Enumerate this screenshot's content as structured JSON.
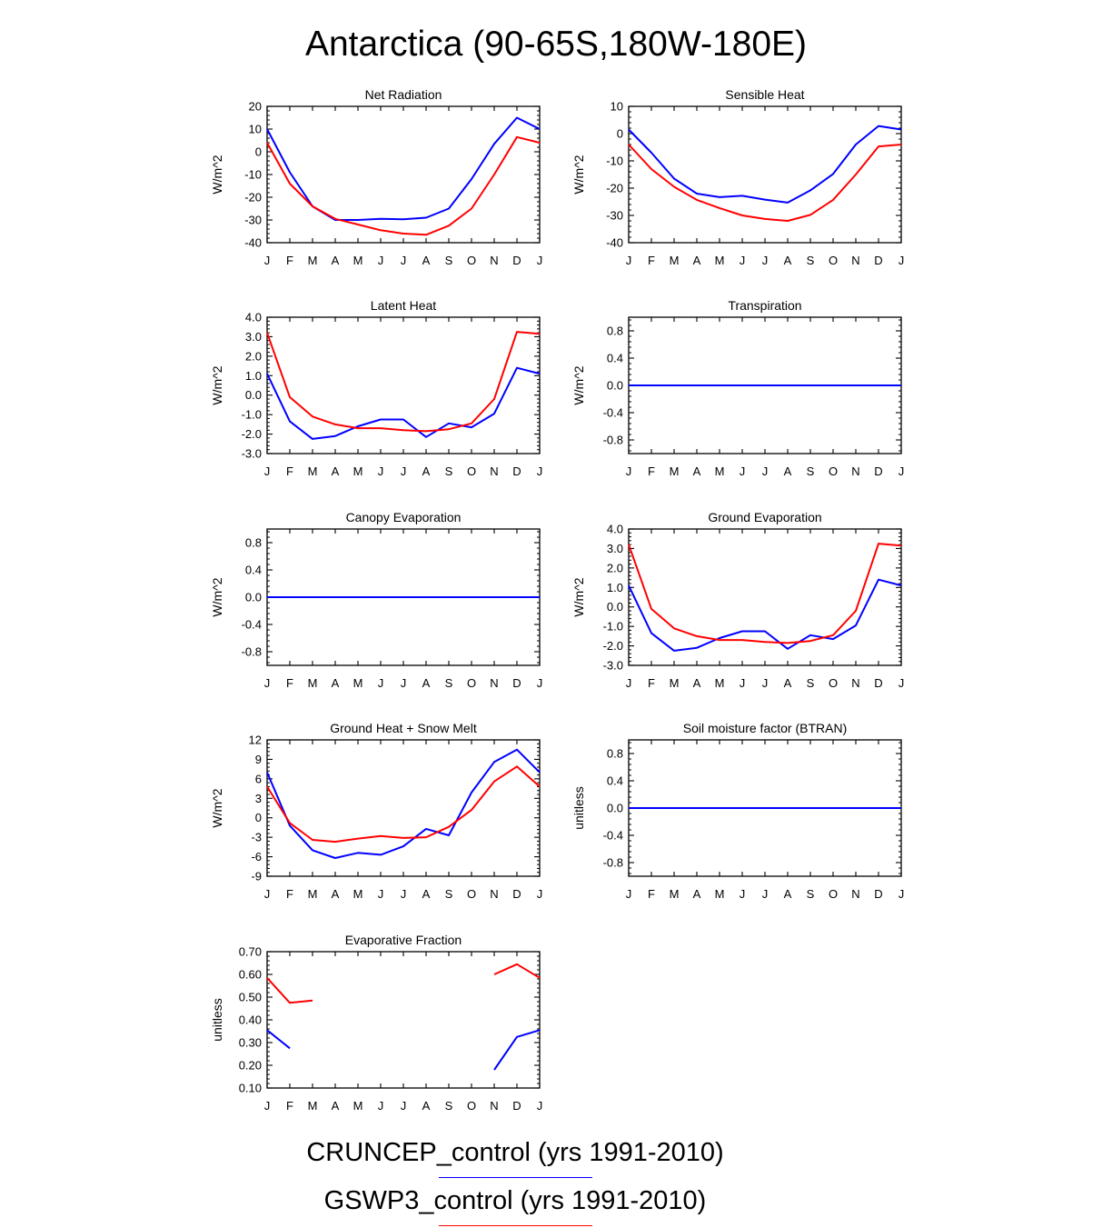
{
  "title": "Antarctica (90-65S,180W-180E)",
  "colors": {
    "CRUNCEP": "#0000ff",
    "GSWP3": "#ff0000"
  },
  "legend": [
    {
      "label": "CRUNCEP_control (yrs 1991-2010)",
      "color": "#0000ff"
    },
    {
      "label": "GSWP3_control (yrs 1991-2010)",
      "color": "#ff0000"
    }
  ],
  "chart_data": [
    {
      "type": "line",
      "title": "Net Radiation",
      "ylabel": "W/m^2",
      "categories": [
        "J",
        "F",
        "M",
        "A",
        "M",
        "J",
        "J",
        "A",
        "S",
        "O",
        "N",
        "D",
        "J"
      ],
      "ylim": [
        -40,
        20
      ],
      "yticks": [
        "20",
        "10",
        "0",
        "-10",
        "-20",
        "-30",
        "-40"
      ],
      "ytick_values": [
        20,
        10,
        0,
        -10,
        -20,
        -30,
        -40
      ],
      "series": [
        {
          "name": "CRUNCEP_control",
          "color": "#0000ff",
          "values": [
            10,
            -9,
            -24,
            -30,
            -30,
            -29.5,
            -29.7,
            -29,
            -25,
            -12,
            3.5,
            15,
            10
          ]
        },
        {
          "name": "GSWP3_control",
          "color": "#ff0000",
          "values": [
            4,
            -14,
            -24,
            -29.5,
            -32,
            -34.5,
            -36,
            -36.5,
            -32.5,
            -25,
            -10,
            6.5,
            4
          ]
        }
      ]
    },
    {
      "type": "line",
      "title": "Sensible Heat",
      "ylabel": "W/m^2",
      "categories": [
        "J",
        "F",
        "M",
        "A",
        "M",
        "J",
        "J",
        "A",
        "S",
        "O",
        "N",
        "D",
        "J"
      ],
      "ylim": [
        -40,
        10
      ],
      "yticks": [
        "10",
        "0",
        "-10",
        "-20",
        "-30",
        "-40"
      ],
      "ytick_values": [
        10,
        0,
        -10,
        -20,
        -30,
        -40
      ],
      "series": [
        {
          "name": "CRUNCEP_control",
          "color": "#0000ff",
          "values": [
            1.5,
            -7,
            -16.5,
            -22,
            -23.3,
            -22.8,
            -24.2,
            -25.3,
            -20.8,
            -14.8,
            -4,
            2.8,
            1.5
          ]
        },
        {
          "name": "GSWP3_control",
          "color": "#ff0000",
          "values": [
            -4,
            -13,
            -19.5,
            -24.3,
            -27.3,
            -30,
            -31.3,
            -32,
            -29.8,
            -24.3,
            -15,
            -4.7,
            -4
          ]
        }
      ]
    },
    {
      "type": "line",
      "title": "Latent Heat",
      "ylabel": "W/m^2",
      "categories": [
        "J",
        "F",
        "M",
        "A",
        "M",
        "J",
        "J",
        "A",
        "S",
        "O",
        "N",
        "D",
        "J"
      ],
      "ylim": [
        -3.0,
        4.0
      ],
      "yticks": [
        "4.0",
        "3.0",
        "2.0",
        "1.0",
        "0.0",
        "-1.0",
        "-2.0",
        "-3.0"
      ],
      "ytick_values": [
        4,
        3,
        2,
        1,
        0,
        -1,
        -2,
        -3
      ],
      "series": [
        {
          "name": "CRUNCEP_control",
          "color": "#0000ff",
          "values": [
            1.1,
            -1.35,
            -2.25,
            -2.1,
            -1.6,
            -1.25,
            -1.25,
            -2.15,
            -1.45,
            -1.65,
            -0.95,
            1.4,
            1.1
          ]
        },
        {
          "name": "GSWP3_control",
          "color": "#ff0000",
          "values": [
            3.2,
            -0.1,
            -1.1,
            -1.5,
            -1.7,
            -1.7,
            -1.8,
            -1.85,
            -1.75,
            -1.45,
            -0.2,
            3.25,
            3.15
          ]
        }
      ]
    },
    {
      "type": "line",
      "title": "Transpiration",
      "ylabel": "W/m^2",
      "categories": [
        "J",
        "F",
        "M",
        "A",
        "M",
        "J",
        "J",
        "A",
        "S",
        "O",
        "N",
        "D",
        "J"
      ],
      "ylim": [
        -1.0,
        1.0
      ],
      "yticks": [
        "0.8",
        "0.4",
        "0.0",
        "-0.4",
        "-0.8"
      ],
      "ytick_values": [
        0.8,
        0.4,
        0,
        -0.4,
        -0.8
      ],
      "series": [
        {
          "name": "GSWP3_control",
          "color": "#ff0000",
          "values": [
            0,
            0,
            0,
            0,
            0,
            0,
            0,
            0,
            0,
            0,
            0,
            0,
            0
          ]
        },
        {
          "name": "CRUNCEP_control",
          "color": "#0000ff",
          "values": [
            0,
            0,
            0,
            0,
            0,
            0,
            0,
            0,
            0,
            0,
            0,
            0,
            0
          ]
        }
      ]
    },
    {
      "type": "line",
      "title": "Canopy Evaporation",
      "ylabel": "W/m^2",
      "categories": [
        "J",
        "F",
        "M",
        "A",
        "M",
        "J",
        "J",
        "A",
        "S",
        "O",
        "N",
        "D",
        "J"
      ],
      "ylim": [
        -1.0,
        1.0
      ],
      "yticks": [
        "0.8",
        "0.4",
        "0.0",
        "-0.4",
        "-0.8"
      ],
      "ytick_values": [
        0.8,
        0.4,
        0,
        -0.4,
        -0.8
      ],
      "series": [
        {
          "name": "GSWP3_control",
          "color": "#ff0000",
          "values": [
            0,
            0,
            0,
            0,
            0,
            0,
            0,
            0,
            0,
            0,
            0,
            0,
            0
          ]
        },
        {
          "name": "CRUNCEP_control",
          "color": "#0000ff",
          "values": [
            0,
            0,
            0,
            0,
            0,
            0,
            0,
            0,
            0,
            0,
            0,
            0,
            0
          ]
        }
      ]
    },
    {
      "type": "line",
      "title": "Ground Evaporation",
      "ylabel": "W/m^2",
      "categories": [
        "J",
        "F",
        "M",
        "A",
        "M",
        "J",
        "J",
        "A",
        "S",
        "O",
        "N",
        "D",
        "J"
      ],
      "ylim": [
        -3.0,
        4.0
      ],
      "yticks": [
        "4.0",
        "3.0",
        "2.0",
        "1.0",
        "0.0",
        "-1.0",
        "-2.0",
        "-3.0"
      ],
      "ytick_values": [
        4,
        3,
        2,
        1,
        0,
        -1,
        -2,
        -3
      ],
      "series": [
        {
          "name": "CRUNCEP_control",
          "color": "#0000ff",
          "values": [
            1.1,
            -1.35,
            -2.25,
            -2.1,
            -1.6,
            -1.25,
            -1.25,
            -2.15,
            -1.45,
            -1.65,
            -0.95,
            1.4,
            1.1
          ]
        },
        {
          "name": "GSWP3_control",
          "color": "#ff0000",
          "values": [
            3.2,
            -0.1,
            -1.1,
            -1.5,
            -1.7,
            -1.7,
            -1.8,
            -1.85,
            -1.75,
            -1.45,
            -0.2,
            3.25,
            3.15
          ]
        }
      ]
    },
    {
      "type": "line",
      "title": "Ground Heat + Snow Melt",
      "ylabel": "W/m^2",
      "categories": [
        "J",
        "F",
        "M",
        "A",
        "M",
        "J",
        "J",
        "A",
        "S",
        "O",
        "N",
        "D",
        "J"
      ],
      "ylim": [
        -9,
        12
      ],
      "yticks": [
        "12",
        "9",
        "6",
        "3",
        "0",
        "-3",
        "-6",
        "-9"
      ],
      "ytick_values": [
        12,
        9,
        6,
        3,
        0,
        -3,
        -6,
        -9
      ],
      "series": [
        {
          "name": "CRUNCEP_control",
          "color": "#0000ff",
          "values": [
            7,
            -1.2,
            -5,
            -6.2,
            -5.4,
            -5.7,
            -4.4,
            -1.7,
            -2.7,
            3.9,
            8.6,
            10.5,
            7
          ]
        },
        {
          "name": "GSWP3_control",
          "color": "#ff0000",
          "values": [
            4.8,
            -0.8,
            -3.4,
            -3.7,
            -3.2,
            -2.8,
            -3.1,
            -3,
            -1.4,
            1.2,
            5.6,
            7.9,
            4.8
          ]
        }
      ]
    },
    {
      "type": "line",
      "title": "Soil moisture factor (BTRAN)",
      "ylabel": "unitless",
      "categories": [
        "J",
        "F",
        "M",
        "A",
        "M",
        "J",
        "J",
        "A",
        "S",
        "O",
        "N",
        "D",
        "J"
      ],
      "ylim": [
        -1.0,
        1.0
      ],
      "yticks": [
        "0.8",
        "0.4",
        "0.0",
        "-0.4",
        "-0.8"
      ],
      "ytick_values": [
        0.8,
        0.4,
        0,
        -0.4,
        -0.8
      ],
      "series": [
        {
          "name": "GSWP3_control",
          "color": "#ff0000",
          "values": [
            0,
            0,
            0,
            0,
            0,
            0,
            0,
            0,
            0,
            0,
            0,
            0,
            0
          ]
        },
        {
          "name": "CRUNCEP_control",
          "color": "#0000ff",
          "values": [
            0,
            0,
            0,
            0,
            0,
            0,
            0,
            0,
            0,
            0,
            0,
            0,
            0
          ]
        }
      ]
    },
    {
      "type": "line",
      "title": "Evaporative Fraction",
      "ylabel": "unitless",
      "categories": [
        "J",
        "F",
        "M",
        "A",
        "M",
        "J",
        "J",
        "A",
        "S",
        "O",
        "N",
        "D",
        "J"
      ],
      "ylim": [
        0.1,
        0.7
      ],
      "yticks": [
        "0.70",
        "0.60",
        "0.50",
        "0.40",
        "0.30",
        "0.20",
        "0.10"
      ],
      "ytick_values": [
        0.7,
        0.6,
        0.5,
        0.4,
        0.3,
        0.2,
        0.1
      ],
      "series": [
        {
          "name": "CRUNCEP_control",
          "color": "#0000ff",
          "values": [
            0.355,
            0.275,
            null,
            null,
            null,
            null,
            null,
            null,
            null,
            null,
            0.18,
            0.325,
            0.355
          ]
        },
        {
          "name": "GSWP3_control",
          "color": "#ff0000",
          "values": [
            0.585,
            0.475,
            0.485,
            null,
            null,
            null,
            null,
            null,
            null,
            null,
            0.6,
            0.645,
            0.585
          ]
        }
      ]
    }
  ]
}
